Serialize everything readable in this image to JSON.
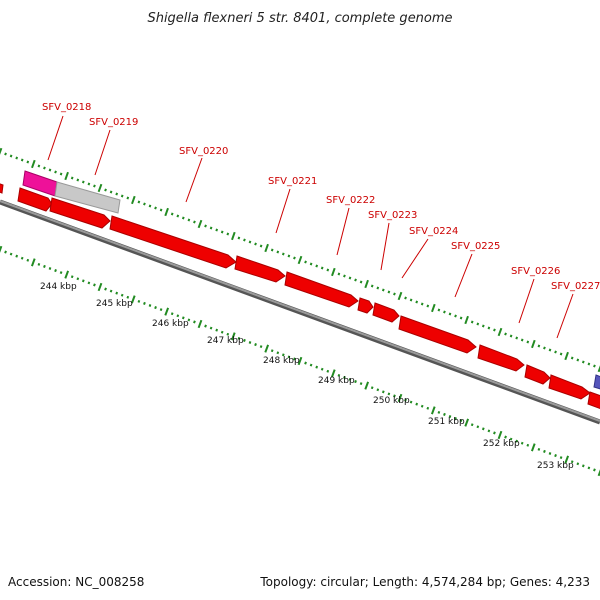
{
  "title": "Shigella flexneri 5 str. 8401, complete genome",
  "footer": {
    "accession": "Accession: NC_008258",
    "summary": "Topology: circular; Length: 4,574,284 bp; Genes: 4,233"
  },
  "colors": {
    "gene_fill": "#ee0000",
    "gene_stroke": "#aa0000",
    "backbone": "#808080",
    "tick": "#228b22",
    "label": "#cc0000",
    "pink_feature": "#ee1199",
    "gray_feature": "#c8c8c8",
    "blue_feature": "#5555bb"
  },
  "gene_labels": [
    "SFV_0218",
    "SFV_0219",
    "SFV_0220",
    "SFV_0221",
    "SFV_0222",
    "SFV_0223",
    "SFV_0224",
    "SFV_0225",
    "SFV_0226",
    "SFV_0227"
  ],
  "kbp_labels": [
    "244 kbp",
    "245 kbp",
    "246 kbp",
    "247 kbp",
    "248 kbp",
    "249 kbp",
    "250 kbp",
    "251 kbp",
    "252 kbp",
    "253 kbp"
  ]
}
